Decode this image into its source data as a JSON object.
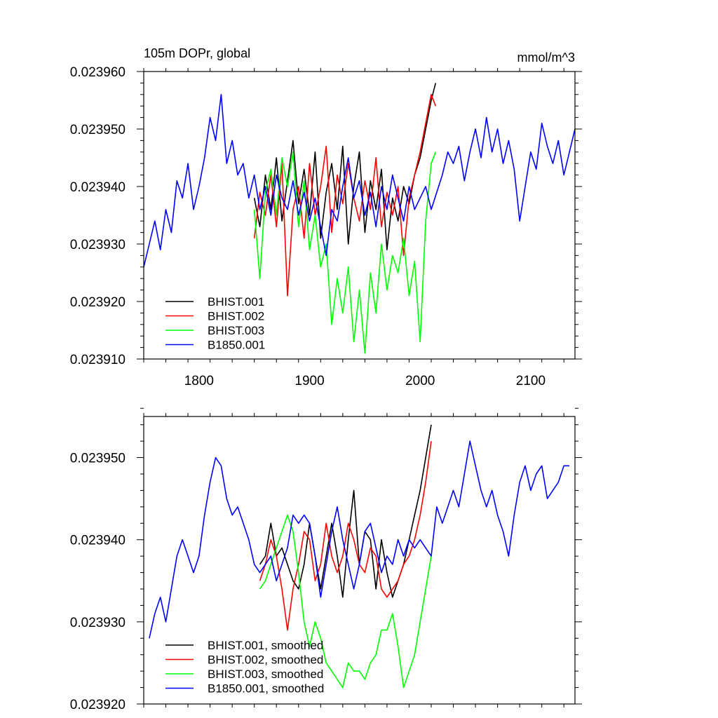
{
  "chart_data": [
    {
      "type": "line",
      "title": "105m DOPr, global",
      "units": "mmol/m^3",
      "xlabel": "",
      "ylabel": "",
      "xlim": [
        1750,
        2140
      ],
      "ylim": [
        0.02391,
        0.02396
      ],
      "xticks": [
        1800,
        1900,
        2000,
        2100
      ],
      "xtick_labels": [
        "1800",
        "1900",
        "2000",
        "2100"
      ],
      "yticks": [
        0.02391,
        0.02392,
        0.02393,
        0.02394,
        0.02395,
        0.02396
      ],
      "ytick_labels": [
        "0.023910",
        "0.023920",
        "0.023930",
        "0.023940",
        "0.023950",
        "0.023960"
      ],
      "legend_position": "bottom-left",
      "series": [
        {
          "name": "BHIST.001",
          "color": "#000000",
          "x": [
            1850,
            1855,
            1860,
            1865,
            1870,
            1875,
            1880,
            1885,
            1890,
            1895,
            1900,
            1905,
            1910,
            1915,
            1920,
            1925,
            1930,
            1935,
            1940,
            1945,
            1950,
            1955,
            1960,
            1965,
            1970,
            1975,
            1980,
            1985,
            1990,
            1995,
            2000,
            2005,
            2010,
            2014
          ],
          "y": [
            0.023938,
            0.023933,
            0.023942,
            0.023936,
            0.023945,
            0.023934,
            0.023941,
            0.023948,
            0.023937,
            0.023943,
            0.023935,
            0.023946,
            0.023931,
            0.023939,
            0.023944,
            0.023936,
            0.023947,
            0.02393,
            0.02394,
            0.023946,
            0.023932,
            0.023941,
            0.023936,
            0.023943,
            0.023929,
            0.023938,
            0.023934,
            0.02394,
            0.023937,
            0.023942,
            0.023945,
            0.02395,
            0.023955,
            0.023958
          ]
        },
        {
          "name": "BHIST.002",
          "color": "#ff0000",
          "x": [
            1850,
            1855,
            1860,
            1865,
            1870,
            1875,
            1880,
            1885,
            1890,
            1895,
            1900,
            1905,
            1910,
            1915,
            1920,
            1925,
            1930,
            1935,
            1940,
            1945,
            1950,
            1955,
            1960,
            1965,
            1970,
            1975,
            1980,
            1985,
            1990,
            1995,
            2000,
            2005,
            2010,
            2014
          ],
          "y": [
            0.023931,
            0.023939,
            0.023935,
            0.023942,
            0.023933,
            0.023944,
            0.023921,
            0.023936,
            0.02394,
            0.023931,
            0.023944,
            0.023935,
            0.02394,
            0.023947,
            0.023932,
            0.023942,
            0.023937,
            0.023944,
            0.023938,
            0.023934,
            0.023941,
            0.023936,
            0.023945,
            0.023933,
            0.023939,
            0.023935,
            0.02394,
            0.023928,
            0.023938,
            0.023942,
            0.023946,
            0.023951,
            0.023956,
            0.023954
          ]
        },
        {
          "name": "BHIST.003",
          "color": "#00ff00",
          "x": [
            1850,
            1855,
            1860,
            1865,
            1870,
            1875,
            1880,
            1885,
            1890,
            1895,
            1900,
            1905,
            1910,
            1915,
            1920,
            1925,
            1930,
            1935,
            1940,
            1945,
            1950,
            1955,
            1960,
            1965,
            1970,
            1975,
            1980,
            1985,
            1990,
            1995,
            2000,
            2005,
            2010,
            2014
          ],
          "y": [
            0.023936,
            0.023924,
            0.023939,
            0.023943,
            0.023935,
            0.023945,
            0.02394,
            0.023946,
            0.023933,
            0.023941,
            0.023929,
            0.023935,
            0.023926,
            0.02393,
            0.023916,
            0.023924,
            0.023918,
            0.023926,
            0.023913,
            0.023922,
            0.023911,
            0.023925,
            0.023918,
            0.02393,
            0.023922,
            0.023928,
            0.023925,
            0.023931,
            0.023921,
            0.023927,
            0.023913,
            0.023934,
            0.023944,
            0.023946
          ]
        },
        {
          "name": "B1850.001",
          "color": "#0000ff",
          "x": [
            1750,
            1755,
            1760,
            1765,
            1770,
            1775,
            1780,
            1785,
            1790,
            1795,
            1800,
            1805,
            1810,
            1815,
            1820,
            1825,
            1830,
            1835,
            1840,
            1845,
            1850,
            1855,
            1860,
            1865,
            1870,
            1875,
            1880,
            1885,
            1890,
            1895,
            1900,
            1905,
            1910,
            1915,
            1920,
            1925,
            1930,
            1935,
            1940,
            1945,
            1950,
            1955,
            1960,
            1965,
            1970,
            1975,
            1980,
            1985,
            1990,
            1995,
            2000,
            2005,
            2010,
            2015,
            2020,
            2025,
            2030,
            2035,
            2040,
            2045,
            2050,
            2055,
            2060,
            2065,
            2070,
            2075,
            2080,
            2085,
            2090,
            2095,
            2100,
            2105,
            2110,
            2115,
            2120,
            2125,
            2130,
            2135,
            2140
          ],
          "y": [
            0.023926,
            0.02393,
            0.023934,
            0.023929,
            0.023936,
            0.023932,
            0.023941,
            0.023938,
            0.023944,
            0.023936,
            0.02394,
            0.023945,
            0.023952,
            0.023948,
            0.023956,
            0.023944,
            0.023948,
            0.023942,
            0.023944,
            0.023938,
            0.023942,
            0.023936,
            0.02394,
            0.023935,
            0.023942,
            0.023938,
            0.023936,
            0.023941,
            0.023935,
            0.023939,
            0.023934,
            0.023938,
            0.023933,
            0.023928,
            0.023936,
            0.023934,
            0.02394,
            0.023945,
            0.023938,
            0.023941,
            0.023935,
            0.023939,
            0.023933,
            0.02394,
            0.023936,
            0.023942,
            0.023938,
            0.023934,
            0.02394,
            0.023936,
            0.023938,
            0.02394,
            0.023936,
            0.023939,
            0.023942,
            0.023946,
            0.023944,
            0.023947,
            0.023941,
            0.023946,
            0.02395,
            0.023945,
            0.023952,
            0.023946,
            0.02395,
            0.023944,
            0.023948,
            0.023943,
            0.023934,
            0.02394,
            0.023946,
            0.023943,
            0.023951,
            0.023947,
            0.023944,
            0.023948,
            0.023942,
            0.023946,
            0.02395
          ]
        }
      ]
    },
    {
      "type": "line",
      "title": "",
      "xlabel": "",
      "ylabel": "",
      "xlim": [
        1750,
        2140
      ],
      "ylim": [
        0.02392,
        0.023955
      ],
      "xticks": [
        1800,
        1900,
        2000,
        2100
      ],
      "yticks": [
        0.02392,
        0.02393,
        0.02394,
        0.02395
      ],
      "ytick_labels": [
        "0.023920",
        "0.023930",
        "0.023940",
        "0.023950"
      ],
      "legend_position": "bottom-left",
      "series": [
        {
          "name": "BHIST.001, smoothed",
          "color": "#000000",
          "x": [
            1855,
            1860,
            1865,
            1870,
            1875,
            1880,
            1885,
            1890,
            1895,
            1900,
            1905,
            1910,
            1915,
            1920,
            1925,
            1930,
            1935,
            1940,
            1945,
            1950,
            1955,
            1960,
            1965,
            1970,
            1975,
            1980,
            1985,
            1990,
            1995,
            2000,
            2005,
            2010
          ],
          "y": [
            0.023937,
            0.023938,
            0.023942,
            0.023938,
            0.023939,
            0.023937,
            0.023935,
            0.023934,
            0.023937,
            0.023942,
            0.023938,
            0.023934,
            0.023938,
            0.023942,
            0.023938,
            0.023933,
            0.02394,
            0.023946,
            0.023937,
            0.023941,
            0.02394,
            0.023934,
            0.02394,
            0.023936,
            0.023933,
            0.023935,
            0.023937,
            0.02394,
            0.023943,
            0.023946,
            0.02395,
            0.023954
          ]
        },
        {
          "name": "BHIST.002, smoothed",
          "color": "#ff0000",
          "x": [
            1855,
            1860,
            1865,
            1870,
            1875,
            1880,
            1885,
            1890,
            1895,
            1900,
            1905,
            1910,
            1915,
            1920,
            1925,
            1930,
            1935,
            1940,
            1945,
            1950,
            1955,
            1960,
            1965,
            1970,
            1975,
            1980,
            1985,
            1990,
            1995,
            2000,
            2005,
            2010
          ],
          "y": [
            0.023935,
            0.023937,
            0.02394,
            0.023938,
            0.023934,
            0.023929,
            0.023934,
            0.023937,
            0.023941,
            0.02394,
            0.023935,
            0.023937,
            0.023942,
            0.023938,
            0.023936,
            0.023938,
            0.023942,
            0.02394,
            0.023937,
            0.023936,
            0.023939,
            0.023938,
            0.023934,
            0.023933,
            0.023934,
            0.023935,
            0.023937,
            0.023938,
            0.02394,
            0.023943,
            0.023947,
            0.023952
          ]
        },
        {
          "name": "BHIST.003, smoothed",
          "color": "#00ff00",
          "x": [
            1855,
            1860,
            1865,
            1870,
            1875,
            1880,
            1885,
            1890,
            1895,
            1900,
            1905,
            1910,
            1915,
            1920,
            1925,
            1930,
            1935,
            1940,
            1945,
            1950,
            1955,
            1960,
            1965,
            1970,
            1975,
            1980,
            1985,
            1990,
            1995,
            2000,
            2005,
            2010
          ],
          "y": [
            0.023934,
            0.023935,
            0.023937,
            0.023939,
            0.023941,
            0.023943,
            0.023941,
            0.023936,
            0.02393,
            0.023927,
            0.02393,
            0.023928,
            0.023925,
            0.023924,
            0.023923,
            0.023922,
            0.023925,
            0.023924,
            0.023924,
            0.023923,
            0.023925,
            0.023926,
            0.023929,
            0.023929,
            0.023931,
            0.023927,
            0.023922,
            0.023924,
            0.023926,
            0.02393,
            0.023934,
            0.023938
          ]
        },
        {
          "name": "B1850.001, smoothed",
          "color": "#0000ff",
          "x": [
            1755,
            1760,
            1765,
            1770,
            1775,
            1780,
            1785,
            1790,
            1795,
            1800,
            1805,
            1810,
            1815,
            1820,
            1825,
            1830,
            1835,
            1840,
            1845,
            1850,
            1855,
            1860,
            1865,
            1870,
            1875,
            1880,
            1885,
            1890,
            1895,
            1900,
            1905,
            1910,
            1915,
            1920,
            1925,
            1930,
            1935,
            1940,
            1945,
            1950,
            1955,
            1960,
            1965,
            1970,
            1975,
            1980,
            1985,
            1990,
            1995,
            2000,
            2005,
            2010,
            2015,
            2020,
            2025,
            2030,
            2035,
            2040,
            2045,
            2050,
            2055,
            2060,
            2065,
            2070,
            2075,
            2080,
            2085,
            2090,
            2095,
            2100,
            2105,
            2110,
            2115,
            2120,
            2125,
            2130,
            2135
          ],
          "y": [
            0.023928,
            0.023931,
            0.023933,
            0.02393,
            0.023934,
            0.023938,
            0.02394,
            0.023938,
            0.023936,
            0.023938,
            0.023943,
            0.023947,
            0.02395,
            0.023949,
            0.023945,
            0.023943,
            0.023944,
            0.023942,
            0.02394,
            0.023937,
            0.023936,
            0.023937,
            0.023938,
            0.023935,
            0.023937,
            0.023939,
            0.023943,
            0.023942,
            0.023943,
            0.023942,
            0.023938,
            0.023933,
            0.023937,
            0.023941,
            0.023944,
            0.02394,
            0.023937,
            0.023934,
            0.023937,
            0.023941,
            0.023942,
            0.023939,
            0.023936,
            0.023938,
            0.023937,
            0.02394,
            0.023938,
            0.02394,
            0.023939,
            0.02394,
            0.023939,
            0.023938,
            0.023944,
            0.023942,
            0.023944,
            0.023946,
            0.023944,
            0.023948,
            0.023952,
            0.023949,
            0.023946,
            0.023944,
            0.023946,
            0.023943,
            0.023941,
            0.023938,
            0.023943,
            0.023947,
            0.023949,
            0.023946,
            0.023948,
            0.023949,
            0.023945,
            0.023946,
            0.023947,
            0.023949,
            0.023949
          ]
        }
      ]
    }
  ]
}
